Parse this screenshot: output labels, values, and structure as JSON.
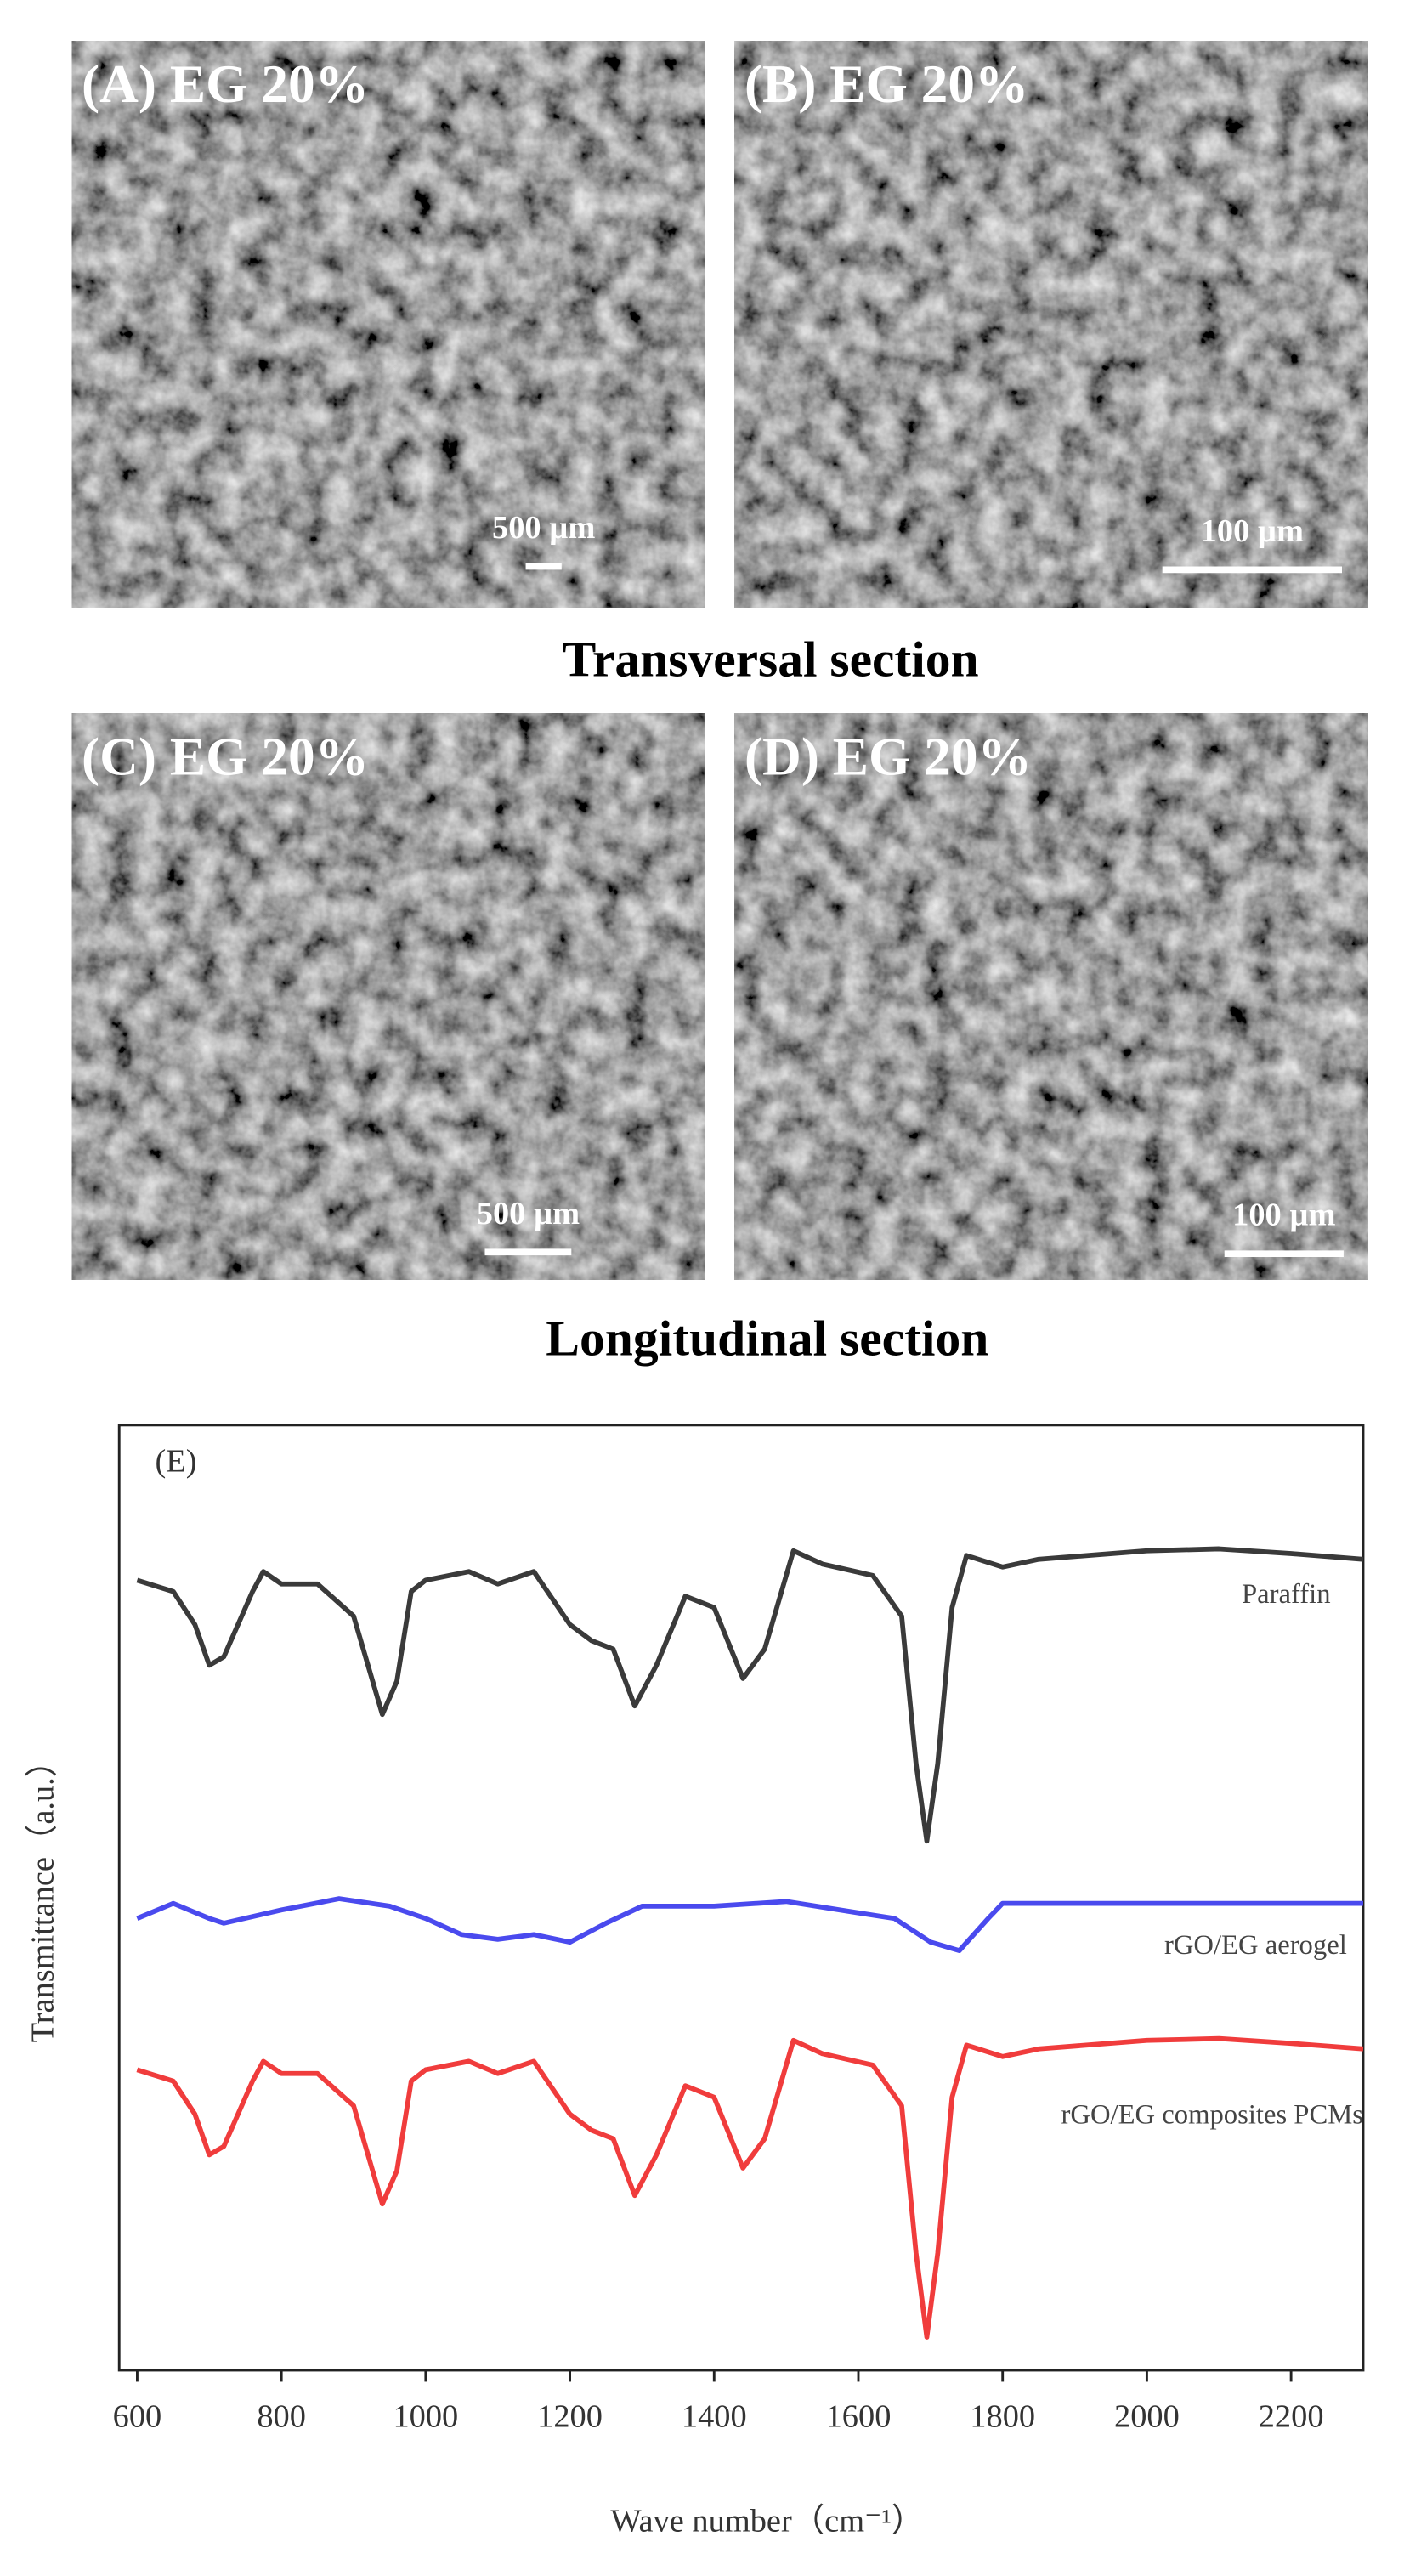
{
  "panels": [
    {
      "label": "(A) EG 20%",
      "scale_bar": "500 µm"
    },
    {
      "label": "(B) EG 20%",
      "scale_bar": "100 µm"
    },
    {
      "label": "(C) EG 20%",
      "scale_bar": "500 µm"
    },
    {
      "label": "(D) EG 20%",
      "scale_bar": "100 µm"
    }
  ],
  "captions": [
    "Transversal section",
    "Longitudinal section"
  ],
  "chart_data": {
    "type": "line",
    "panel_label": "(E)",
    "xlabel": "Wave number（cm⁻¹）",
    "ylabel": "Transmittance（a.u.）",
    "xlim": [
      575,
      2300
    ],
    "ylim": [
      0,
      100
    ],
    "xticks": [
      600,
      800,
      1000,
      1200,
      1400,
      1600,
      1800,
      2000,
      2200
    ],
    "series": [
      {
        "name": "Paraffin",
        "color": "#3a3a3a",
        "x": [
          600,
          650,
          680,
          700,
          720,
          760,
          775,
          800,
          850,
          900,
          940,
          960,
          980,
          1000,
          1060,
          1100,
          1150,
          1200,
          1230,
          1260,
          1290,
          1320,
          1360,
          1400,
          1440,
          1470,
          1510,
          1550,
          1620,
          1660,
          1680,
          1695,
          1710,
          1730,
          1750,
          1800,
          1850,
          2000,
          2100,
          2200,
          2300
        ],
        "values": [
          83.6,
          82.4,
          78.9,
          74.6,
          75.5,
          82.4,
          84.5,
          83.2,
          83.2,
          79.8,
          69.4,
          72.9,
          82.4,
          83.6,
          84.5,
          83.2,
          84.5,
          78.9,
          77.2,
          76.3,
          70.3,
          74.6,
          81.9,
          80.7,
          73.2,
          76.3,
          86.7,
          85.3,
          84.1,
          79.8,
          64.2,
          56.0,
          64.2,
          80.7,
          86.2,
          85.0,
          85.8,
          86.7,
          86.9,
          86.4,
          85.8
        ]
      },
      {
        "name": "rGO/EG aerogel",
        "color": "#4a4aee",
        "x": [
          600,
          650,
          700,
          720,
          800,
          880,
          950,
          1000,
          1050,
          1100,
          1150,
          1200,
          1250,
          1300,
          1400,
          1500,
          1600,
          1650,
          1700,
          1740,
          1780,
          1800,
          2000,
          2300
        ],
        "values": [
          47.8,
          49.4,
          47.8,
          47.3,
          48.7,
          49.9,
          49.1,
          47.8,
          46.1,
          45.6,
          46.1,
          45.3,
          47.3,
          49.1,
          49.1,
          49.6,
          48.4,
          47.8,
          45.3,
          44.4,
          47.8,
          49.4,
          49.4,
          49.4
        ]
      },
      {
        "name": "rGO/EG composites PCMs",
        "color": "#f03c3c",
        "x": [
          600,
          650,
          680,
          700,
          720,
          760,
          775,
          800,
          850,
          900,
          940,
          960,
          980,
          1000,
          1060,
          1100,
          1150,
          1200,
          1230,
          1260,
          1290,
          1320,
          1360,
          1400,
          1440,
          1470,
          1510,
          1550,
          1620,
          1660,
          1680,
          1695,
          1710,
          1730,
          1750,
          1800,
          1850,
          2000,
          2100,
          2200,
          2300
        ],
        "values": [
          31.8,
          30.6,
          27.1,
          22.8,
          23.7,
          30.6,
          32.7,
          31.4,
          31.4,
          28.0,
          17.6,
          21.1,
          30.6,
          31.8,
          32.7,
          31.4,
          32.7,
          27.1,
          25.4,
          24.5,
          18.5,
          22.8,
          30.1,
          28.9,
          21.4,
          24.5,
          34.9,
          33.5,
          32.3,
          28.0,
          12.4,
          3.5,
          12.4,
          28.9,
          34.4,
          33.2,
          34.0,
          34.9,
          35.1,
          34.6,
          34.0
        ]
      }
    ]
  }
}
